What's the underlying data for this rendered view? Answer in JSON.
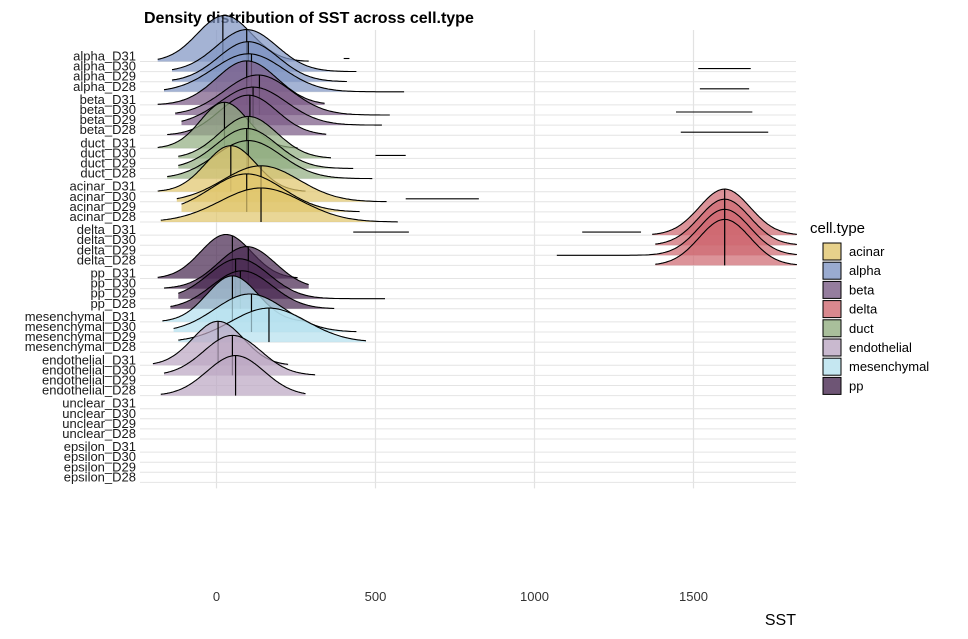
{
  "chart_data": {
    "type": "ridgeline-density",
    "title": "Density distribution of SST across cell.type",
    "xlabel": "SST",
    "ylabel": "",
    "xlim": [
      -250,
      1820
    ],
    "x_ticks": [
      0,
      500,
      1000,
      1500
    ],
    "grid": true,
    "legend": {
      "title": "cell.type",
      "placement": "right",
      "entries": [
        {
          "label": "acinar",
          "color": "#E1C66E"
        },
        {
          "label": "alpha",
          "color": "#8196C4"
        },
        {
          "label": "beta",
          "color": "#7B5C86"
        },
        {
          "label": "delta",
          "color": "#CF6A72"
        },
        {
          "label": "duct",
          "color": "#93AF82"
        },
        {
          "label": "endothelial",
          "color": "#BCA7C3"
        },
        {
          "label": "mesenchymal",
          "color": "#B6E1EE"
        },
        {
          "label": "pp",
          "color": "#4A2A52"
        }
      ]
    },
    "rows": [
      {
        "label": "alpha_D31",
        "type": "alpha",
        "median": 20,
        "peaks": [
          {
            "c": 25,
            "s": 85,
            "h": 1.15
          }
        ],
        "extent": [
          -185,
          290
        ],
        "extras": [
          {
            "x1": 400,
            "x2": 418
          }
        ]
      },
      {
        "label": "alpha_D30",
        "type": "alpha",
        "median": 95,
        "peaks": [
          {
            "c": 95,
            "s": 95,
            "h": 1.05
          }
        ],
        "extent": [
          -140,
          440
        ],
        "extras": [
          {
            "x1": 1515,
            "x2": 1680
          }
        ]
      },
      {
        "label": "alpha_D29",
        "type": "alpha",
        "median": 100,
        "peaks": [
          {
            "c": 100,
            "s": 95,
            "h": 1.0
          }
        ],
        "extent": [
          -140,
          410
        ],
        "extras": []
      },
      {
        "label": "alpha_D28",
        "type": "alpha",
        "median": 110,
        "peaks": [
          {
            "c": 100,
            "s": 110,
            "h": 0.95
          }
        ],
        "extent": [
          -165,
          590
        ],
        "extras": [
          {
            "x1": 1520,
            "x2": 1675
          }
        ]
      },
      {
        "label": "beta_D31",
        "type": "beta",
        "median": 95,
        "peaks": [
          {
            "c": 95,
            "s": 95,
            "h": 1.1
          }
        ],
        "extent": [
          -185,
          340
        ],
        "extras": []
      },
      {
        "label": "beta_D30",
        "type": "beta",
        "median": 135,
        "peaks": [
          {
            "c": 130,
            "s": 105,
            "h": 1.0
          }
        ],
        "extent": [
          -130,
          545
        ],
        "extras": [
          {
            "x1": 1445,
            "x2": 1685
          }
        ]
      },
      {
        "label": "beta_D29",
        "type": "beta",
        "median": 115,
        "peaks": [
          {
            "c": 115,
            "s": 105,
            "h": 0.95
          }
        ],
        "extent": [
          -110,
          520
        ],
        "extras": []
      },
      {
        "label": "beta_D28",
        "type": "beta",
        "median": 105,
        "peaks": [
          {
            "c": 100,
            "s": 90,
            "h": 1.0
          }
        ],
        "extent": [
          -155,
          345
        ],
        "extras": [
          {
            "x1": 1460,
            "x2": 1735
          }
        ]
      },
      {
        "label": "duct_D31",
        "type": "duct",
        "median": 25,
        "peaks": [
          {
            "c": 25,
            "s": 75,
            "h": 1.15
          }
        ],
        "extent": [
          -185,
          255
        ],
        "extras": []
      },
      {
        "label": "duct_D30",
        "type": "duct",
        "median": 100,
        "peaks": [
          {
            "c": 100,
            "s": 90,
            "h": 1.05
          }
        ],
        "extent": [
          -120,
          360
        ],
        "extras": [
          {
            "x1": 500,
            "x2": 595
          }
        ]
      },
      {
        "label": "duct_D29",
        "type": "duct",
        "median": 95,
        "peaks": [
          {
            "c": 95,
            "s": 95,
            "h": 1.0
          }
        ],
        "extent": [
          -120,
          430
        ],
        "extras": []
      },
      {
        "label": "duct_D28",
        "type": "duct",
        "median": 100,
        "peaks": [
          {
            "c": 100,
            "s": 105,
            "h": 0.95
          }
        ],
        "extent": [
          -155,
          490
        ],
        "extras": []
      },
      {
        "label": "acinar_D31",
        "type": "acinar",
        "median": 45,
        "peaks": [
          {
            "c": 45,
            "s": 80,
            "h": 1.15
          }
        ],
        "extent": [
          -185,
          280
        ],
        "extras": []
      },
      {
        "label": "acinar_D30",
        "type": "acinar",
        "median": 140,
        "peaks": [
          {
            "c": 140,
            "s": 120,
            "h": 0.9
          }
        ],
        "extent": [
          -125,
          535
        ],
        "extras": [
          {
            "x1": 595,
            "x2": 825
          }
        ]
      },
      {
        "label": "acinar_D29",
        "type": "acinar",
        "median": 95,
        "peaks": [
          {
            "c": 95,
            "s": 115,
            "h": 0.95
          }
        ],
        "extent": [
          -110,
          450
        ],
        "extras": []
      },
      {
        "label": "acinar_D28",
        "type": "acinar",
        "median": 140,
        "peaks": [
          {
            "c": 140,
            "s": 130,
            "h": 0.85
          }
        ],
        "extent": [
          -175,
          570
        ],
        "extras": []
      },
      {
        "label": "delta_D31",
        "type": "delta",
        "median": 1598,
        "peaks": [
          {
            "c": 1598,
            "s": 80,
            "h": 1.15
          }
        ],
        "extent": [
          1370,
          1825
        ],
        "extras": [
          {
            "x1": 430,
            "x2": 605
          },
          {
            "x1": 1150,
            "x2": 1335
          }
        ]
      },
      {
        "label": "delta_D30",
        "type": "delta",
        "median": 1598,
        "peaks": [
          {
            "c": 1598,
            "s": 80,
            "h": 1.15
          }
        ],
        "extent": [
          1380,
          1825
        ],
        "extras": []
      },
      {
        "label": "delta_D29",
        "type": "delta",
        "median": 1598,
        "peaks": [
          {
            "c": 1598,
            "s": 80,
            "h": 1.15
          }
        ],
        "extent": [
          1070,
          1825
        ],
        "extras": []
      },
      {
        "label": "delta_D28",
        "type": "delta",
        "median": 1598,
        "peaks": [
          {
            "c": 1598,
            "s": 80,
            "h": 1.15
          }
        ],
        "extent": [
          1380,
          1825
        ],
        "extras": []
      },
      {
        "label": "pp_D31",
        "type": "pp",
        "median": 50,
        "peaks": [
          {
            "c": 30,
            "s": 80,
            "h": 1.1
          }
        ],
        "extent": [
          -185,
          255
        ],
        "extras": []
      },
      {
        "label": "pp_D30",
        "type": "pp",
        "median": 100,
        "peaks": [
          {
            "c": 95,
            "s": 90,
            "h": 1.05
          }
        ],
        "extent": [
          -165,
          290
        ],
        "extras": []
      },
      {
        "label": "pp_D29",
        "type": "pp",
        "median": 60,
        "peaks": [
          {
            "c": 70,
            "s": 95,
            "h": 1.0
          }
        ],
        "extent": [
          -120,
          530
        ],
        "extras": []
      },
      {
        "label": "pp_D28",
        "type": "pp",
        "median": 75,
        "peaks": [
          {
            "c": 80,
            "s": 95,
            "h": 0.95
          }
        ],
        "extent": [
          -145,
          370
        ],
        "extras": []
      },
      {
        "label": "mesenchymal_D31",
        "type": "mesenchymal",
        "median": 50,
        "peaks": [
          {
            "c": 50,
            "s": 80,
            "h": 1.15
          }
        ],
        "extent": [
          -170,
          285
        ],
        "extras": []
      },
      {
        "label": "mesenchymal_D30",
        "type": "mesenchymal",
        "median": 110,
        "peaks": [
          {
            "c": 105,
            "s": 110,
            "h": 0.95
          }
        ],
        "extent": [
          -135,
          440
        ],
        "extras": []
      },
      {
        "label": "mesenchymal_D29",
        "type": "mesenchymal",
        "median": 165,
        "peaks": [
          {
            "c": 165,
            "s": 120,
            "h": 0.85
          }
        ],
        "extent": [
          -120,
          470
        ],
        "extras": []
      },
      {
        "label": "mesenchymal_D28",
        "type": "mesenchymal",
        "median": null,
        "peaks": [],
        "extent": null,
        "extras": []
      },
      {
        "label": "endothelial_D31",
        "type": "endothelial",
        "median": 5,
        "peaks": [
          {
            "c": 5,
            "s": 80,
            "h": 1.1
          }
        ],
        "extent": [
          -200,
          225
        ],
        "extras": []
      },
      {
        "label": "endothelial_D30",
        "type": "endothelial",
        "median": 50,
        "peaks": [
          {
            "c": 50,
            "s": 90,
            "h": 1.0
          }
        ],
        "extent": [
          -165,
          310
        ],
        "extras": []
      },
      {
        "label": "endothelial_D29",
        "type": "endothelial",
        "median": null,
        "peaks": [],
        "extent": null,
        "extras": []
      },
      {
        "label": "endothelial_D28",
        "type": "endothelial",
        "median": 60,
        "peaks": [
          {
            "c": 60,
            "s": 90,
            "h": 1.0
          }
        ],
        "extent": [
          -175,
          280
        ],
        "extras": []
      },
      {
        "label": "unclear_D31",
        "type": null,
        "median": null,
        "peaks": [],
        "extent": null,
        "extras": []
      },
      {
        "label": "unclear_D30",
        "type": null,
        "median": null,
        "peaks": [],
        "extent": null,
        "extras": []
      },
      {
        "label": "unclear_D29",
        "type": null,
        "median": null,
        "peaks": [],
        "extent": null,
        "extras": []
      },
      {
        "label": "unclear_D28",
        "type": null,
        "median": null,
        "peaks": [],
        "extent": null,
        "extras": []
      },
      {
        "label": "epsilon_D31",
        "type": null,
        "median": null,
        "peaks": [],
        "extent": null,
        "extras": []
      },
      {
        "label": "epsilon_D30",
        "type": null,
        "median": null,
        "peaks": [],
        "extent": null,
        "extras": []
      },
      {
        "label": "epsilon_D29",
        "type": null,
        "median": null,
        "peaks": [],
        "extent": null,
        "extras": []
      },
      {
        "label": "epsilon_D28",
        "type": null,
        "median": null,
        "peaks": [],
        "extent": null,
        "extras": []
      }
    ]
  }
}
